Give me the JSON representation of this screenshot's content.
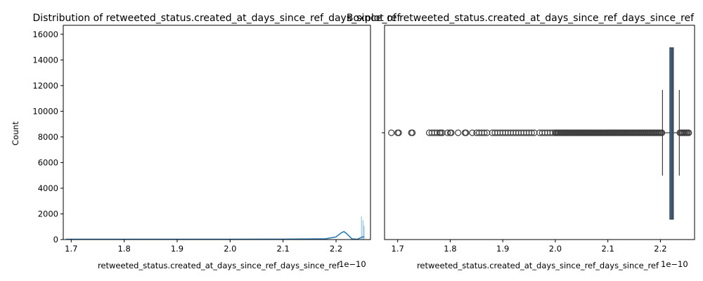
{
  "colors": {
    "series": "#1f77b4",
    "box_fill": "#3a6f9e",
    "outline": "#3d3d3d",
    "kde": "#2b7bba",
    "background": "#ffffff"
  },
  "chart_data": [
    {
      "type": "histogram",
      "title": "Distribution of retweeted_status.created_at_days_since_ref_days_since_ref",
      "xlabel": "retweeted_status.created_at_days_since_ref_days_since_ref",
      "ylabel": "Count",
      "x_offset_label": "1e−10",
      "xlim": [
        1.685,
        2.265
      ],
      "ylim": [
        0,
        16700
      ],
      "xticks": [
        1.7,
        1.8,
        1.9,
        2.0,
        2.1,
        2.2
      ],
      "xtick_labels": [
        "1.7",
        "1.8",
        "1.9",
        "2.0",
        "2.1",
        "2.2"
      ],
      "yticks": [
        0,
        2000,
        4000,
        6000,
        8000,
        10000,
        12000,
        14000,
        16000
      ],
      "ytick_labels": [
        "0",
        "2000",
        "4000",
        "6000",
        "8000",
        "10000",
        "12000",
        "14000",
        "16000"
      ],
      "bins": [
        {
          "x": 2.248,
          "count": 1800
        },
        {
          "x": 2.251,
          "count": 1500
        },
        {
          "x": 2.253,
          "count": 1100
        }
      ],
      "kde": {
        "x": [
          1.69,
          1.8,
          1.9,
          2.0,
          2.1,
          2.18,
          2.2,
          2.21,
          2.215,
          2.22,
          2.23,
          2.24,
          2.25,
          2.253
        ],
        "y": [
          30,
          30,
          30,
          30,
          35,
          60,
          200,
          530,
          620,
          460,
          50,
          20,
          200,
          210
        ]
      },
      "grid": false
    },
    {
      "type": "box",
      "title": "Boxplot of retweeted_status.created_at_days_since_ref_days_since_ref",
      "xlabel": "retweeted_status.created_at_days_since_ref_days_since_ref",
      "x_offset_label": "1e−10",
      "xlim": [
        1.675,
        2.265
      ],
      "xticks": [
        1.7,
        1.8,
        1.9,
        2.0,
        2.1,
        2.2
      ],
      "xtick_labels": [
        "1.7",
        "1.8",
        "1.9",
        "2.0",
        "2.1",
        "2.2"
      ],
      "box": {
        "q1": 2.218,
        "median": 2.222,
        "q3": 2.222,
        "whisker_low": 2.204,
        "whisker_high": 2.236
      },
      "outliers_low": [
        1.688,
        1.7,
        1.702,
        1.726,
        1.728,
        1.76,
        1.765,
        1.77,
        1.775,
        1.78,
        1.782,
        1.785,
        1.795,
        1.8,
        1.802,
        1.815,
        1.828,
        1.83,
        1.842,
        1.85,
        1.855,
        1.86,
        1.865,
        1.87,
        1.88,
        1.885,
        1.89,
        1.895,
        1.9,
        1.905,
        1.91,
        1.915,
        1.92,
        1.925,
        1.93,
        1.935,
        1.94,
        1.945,
        1.95,
        1.955,
        1.96,
        1.97,
        1.975,
        1.98,
        1.985,
        1.99,
        1.995,
        2.0
      ],
      "outlier_dense_ranges_low": [
        [
          2.0,
          2.203
        ]
      ],
      "outlier_dense_ranges_high": [
        [
          2.237,
          2.254
        ]
      ],
      "grid": false
    }
  ]
}
